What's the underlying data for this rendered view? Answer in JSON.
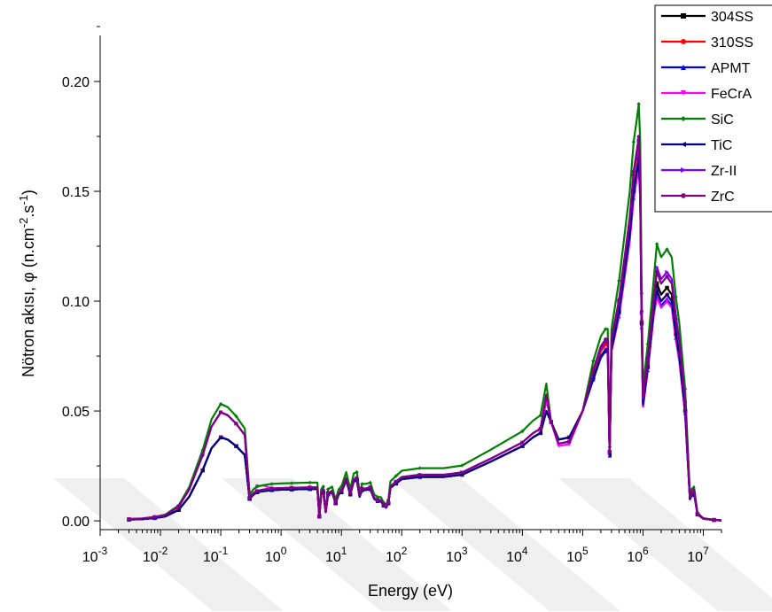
{
  "chart_data": {
    "type": "line",
    "xscale": "log",
    "xlabel": "Energy (eV)",
    "ylabel": "Nötron akısı, φ (n.cm-2.s-1)",
    "xlim": [
      0.001,
      20000000
    ],
    "ylim": [
      -0.004,
      0.225
    ],
    "xticks": [
      {
        "v": 0.001,
        "base": "10",
        "exp": "-3"
      },
      {
        "v": 0.01,
        "base": "10",
        "exp": "-2"
      },
      {
        "v": 0.1,
        "base": "10",
        "exp": "-1"
      },
      {
        "v": 1,
        "base": "10",
        "exp": "0"
      },
      {
        "v": 10,
        "base": "10",
        "exp": "1"
      },
      {
        "v": 100,
        "base": "10",
        "exp": "2"
      },
      {
        "v": 1000,
        "base": "10",
        "exp": "3"
      },
      {
        "v": 10000,
        "base": "10",
        "exp": "4"
      },
      {
        "v": 100000,
        "base": "10",
        "exp": "5"
      },
      {
        "v": 1000000,
        "base": "10",
        "exp": "6"
      },
      {
        "v": 10000000,
        "base": "10",
        "exp": "7"
      }
    ],
    "yticks": [
      {
        "v": 0.0,
        "label": "0.00"
      },
      {
        "v": 0.05,
        "label": "0.05"
      },
      {
        "v": 0.1,
        "label": "0.10"
      },
      {
        "v": 0.15,
        "label": "0.15"
      },
      {
        "v": 0.2,
        "label": "0.20"
      }
    ],
    "legend": "top-right",
    "x": [
      0.003,
      0.005,
      0.008,
      0.012,
      0.02,
      0.03,
      0.05,
      0.07,
      0.1,
      0.13,
      0.18,
      0.25,
      0.3,
      0.35,
      0.4,
      0.5,
      0.7,
      1,
      1.5,
      2,
      3,
      4,
      4.3,
      4.6,
      5,
      5.5,
      6,
      7,
      8,
      9,
      10,
      12,
      14,
      16,
      18,
      20,
      22,
      25,
      30,
      35,
      40,
      45,
      50,
      55,
      60,
      65,
      80,
      100,
      200,
      500,
      1000,
      3000,
      10000,
      15000,
      20000,
      25000,
      30000,
      40000,
      60000,
      100000,
      150000,
      200000,
      240000,
      260000,
      280000,
      300000,
      400000,
      600000,
      700000,
      800000,
      850000,
      900000,
      950000,
      1000000,
      1200000,
      1500000,
      1700000,
      2000000,
      2500000,
      3000000,
      3500000,
      4000000,
      5000000,
      6000000,
      6500000,
      7000000,
      8000000,
      10000000,
      15000000,
      20000000
    ],
    "base": [
      0.0006,
      0.0008,
      0.0013,
      0.002,
      0.005,
      0.011,
      0.023,
      0.033,
      0.038,
      0.037,
      0.034,
      0.03,
      0.01,
      0.012,
      0.013,
      0.0135,
      0.014,
      0.0142,
      0.0143,
      0.0144,
      0.0145,
      0.0145,
      0.002,
      0.012,
      0.013,
      0.004,
      0.012,
      0.013,
      0.008,
      0.012,
      0.013,
      0.0185,
      0.012,
      0.018,
      0.0185,
      0.011,
      0.014,
      0.014,
      0.0145,
      0.01,
      0.009,
      0.009,
      0.007,
      0.006,
      0.008,
      0.015,
      0.017,
      0.019,
      0.02,
      0.02,
      0.021,
      0.027,
      0.034,
      0.038,
      0.04,
      0.05,
      0.045,
      0.037,
      0.038,
      0.05,
      0.065,
      0.075,
      0.078,
      0.078,
      0.03,
      0.078,
      0.095,
      0.13,
      0.15,
      0.16,
      0.165,
      0.15,
      0.09,
      0.053,
      0.07,
      0.095,
      0.105,
      0.1,
      0.103,
      0.1,
      0.085,
      0.075,
      0.05,
      0.01,
      0.012,
      0.013,
      0.003,
      0.001,
      0.0004,
      0.0002
    ],
    "series": [
      {
        "name": "304SS",
        "color": "#000000",
        "marker": "square",
        "scales": [
          1.0,
          1.0,
          1.0,
          1.0,
          1.0,
          1.0,
          1.0,
          1.0,
          1.0,
          1.0,
          1.0,
          1.0,
          1.0,
          1.0,
          1.0,
          1.0,
          1.0,
          1.0,
          1.0,
          1.0,
          1.0,
          1.0,
          1.0,
          1.0,
          1.0,
          1.0,
          1.0,
          1.0,
          1.0,
          1.0,
          1.0,
          1.0,
          1.0,
          1.0,
          1.0,
          1.0,
          1.0,
          1.0,
          1.0,
          1.0,
          1.0,
          1.0,
          1.0,
          1.0,
          1.0,
          1.0,
          1.0,
          1.0,
          1.0,
          1.0,
          1.0,
          1.0,
          1.0,
          1.0,
          1.0,
          1.0,
          1.0,
          1.0,
          1.0,
          1.0,
          1.04,
          1.04,
          1.04,
          1.04,
          1.04,
          1.04,
          1.0,
          1.0,
          1.0,
          1.0,
          1.0,
          1.0,
          1.0,
          1.0,
          1.0,
          1.0,
          1.03,
          1.03,
          1.03,
          1.03,
          1.0,
          1.0,
          1.0,
          1.0,
          1.0,
          1.0,
          1.0,
          1.0,
          1.0,
          1.0
        ]
      },
      {
        "name": "310SS",
        "color": "#ff0000",
        "marker": "circle",
        "scales": [
          1.0,
          1.0,
          1.0,
          1.0,
          1.0,
          1.0,
          1.0,
          1.0,
          1.0,
          1.0,
          1.0,
          1.0,
          1.0,
          1.0,
          1.0,
          1.0,
          1.0,
          1.0,
          1.0,
          1.0,
          1.0,
          1.0,
          1.0,
          1.0,
          1.0,
          1.0,
          1.0,
          1.0,
          1.0,
          1.0,
          1.0,
          1.0,
          1.0,
          1.0,
          1.0,
          1.0,
          1.0,
          1.0,
          1.0,
          1.0,
          1.0,
          1.0,
          1.0,
          1.0,
          1.0,
          1.0,
          1.0,
          1.0,
          1.0,
          1.0,
          1.0,
          1.0,
          1.0,
          1.0,
          1.0,
          1.0,
          1.0,
          1.0,
          1.0,
          1.0,
          1.03,
          1.03,
          1.03,
          1.03,
          1.03,
          1.03,
          1.01,
          1.01,
          1.01,
          1.01,
          1.01,
          1.01,
          1.01,
          1.01,
          1.01,
          1.0,
          1.0,
          1.0,
          1.0,
          1.0,
          1.0,
          1.0,
          1.0,
          1.0,
          1.0,
          1.0,
          1.0,
          1.0,
          1.0,
          1.0
        ]
      },
      {
        "name": "APMT",
        "color": "#0000ff",
        "marker": "triangle-up",
        "scales": [
          1.0,
          1.0,
          1.0,
          1.0,
          1.0,
          1.0,
          1.0,
          1.0,
          1.0,
          1.0,
          1.0,
          1.0,
          1.0,
          1.0,
          1.0,
          1.0,
          1.0,
          1.0,
          1.0,
          1.0,
          1.0,
          1.0,
          1.0,
          1.0,
          1.0,
          1.0,
          1.0,
          1.0,
          1.0,
          1.0,
          1.0,
          1.0,
          1.0,
          1.0,
          1.0,
          1.0,
          1.0,
          1.0,
          1.0,
          1.0,
          1.0,
          1.0,
          1.0,
          1.0,
          1.0,
          1.0,
          1.0,
          1.0,
          1.0,
          1.0,
          1.0,
          1.0,
          1.0,
          1.0,
          1.0,
          1.0,
          1.0,
          1.0,
          1.0,
          1.0,
          0.99,
          0.99,
          0.99,
          0.99,
          0.99,
          0.99,
          0.98,
          0.98,
          0.98,
          0.98,
          0.98,
          0.98,
          0.98,
          0.98,
          0.98,
          0.98,
          0.98,
          0.98,
          0.98,
          0.98,
          0.98,
          0.98,
          0.98,
          0.98,
          0.98,
          0.98,
          0.98,
          0.98,
          0.98,
          0.98
        ]
      },
      {
        "name": "FeCrA",
        "color": "#ff00ff",
        "marker": "triangle-down",
        "scales": [
          1.3,
          1.3,
          1.3,
          1.3,
          1.3,
          1.3,
          1.3,
          1.3,
          1.3,
          1.3,
          1.3,
          1.3,
          1.2,
          1.2,
          1.2,
          1.2,
          1.05,
          1.05,
          1.05,
          1.05,
          1.05,
          1.05,
          1.05,
          1.05,
          1.05,
          1.05,
          1.05,
          1.05,
          1.05,
          1.05,
          1.05,
          1.05,
          1.05,
          1.05,
          1.05,
          1.05,
          1.05,
          1.05,
          1.05,
          1.05,
          1.05,
          1.05,
          1.05,
          1.05,
          1.05,
          1.05,
          1.0,
          1.0,
          1.0,
          1.0,
          1.0,
          1.0,
          1.0,
          1.0,
          1.0,
          1.1,
          1.0,
          0.92,
          0.92,
          1.0,
          1.0,
          1.0,
          1.0,
          1.0,
          1.0,
          1.0,
          0.98,
          0.98,
          0.98,
          0.98,
          0.98,
          0.98,
          0.98,
          0.98,
          0.98,
          0.98,
          0.97,
          0.97,
          0.97,
          0.97,
          0.97,
          0.97,
          0.97,
          0.97,
          0.97,
          0.97,
          0.97,
          0.97,
          0.97,
          0.97
        ]
      },
      {
        "name": "SiC",
        "color": "#008000",
        "marker": "diamond",
        "scales": [
          1.4,
          1.4,
          1.4,
          1.4,
          1.4,
          1.4,
          1.4,
          1.4,
          1.4,
          1.4,
          1.4,
          1.4,
          1.2,
          1.2,
          1.2,
          1.2,
          1.2,
          1.2,
          1.2,
          1.2,
          1.2,
          1.2,
          1.2,
          1.2,
          1.2,
          1.2,
          1.2,
          1.2,
          1.2,
          1.2,
          1.2,
          1.2,
          1.2,
          1.2,
          1.2,
          1.2,
          1.2,
          1.2,
          1.2,
          1.2,
          1.2,
          1.2,
          1.2,
          1.2,
          1.2,
          1.2,
          1.2,
          1.2,
          1.2,
          1.2,
          1.2,
          1.2,
          1.2,
          1.2,
          1.2,
          1.25,
          1.0,
          1.0,
          1.0,
          1.0,
          1.12,
          1.12,
          1.12,
          1.12,
          1.12,
          1.12,
          1.15,
          1.15,
          1.15,
          1.15,
          1.15,
          1.15,
          1.15,
          1.15,
          1.15,
          1.15,
          1.2,
          1.2,
          1.2,
          1.2,
          1.2,
          1.2,
          1.2,
          1.2,
          1.2,
          1.2,
          1.2,
          1.2,
          1.2,
          1.2
        ]
      },
      {
        "name": "TiC",
        "color": "#000080",
        "marker": "triangle-left",
        "scales": [
          1.0,
          1.0,
          1.0,
          1.0,
          1.0,
          1.0,
          1.0,
          1.0,
          1.0,
          1.0,
          1.0,
          1.0,
          1.0,
          1.0,
          1.0,
          1.0,
          1.0,
          1.0,
          1.0,
          1.0,
          1.0,
          1.0,
          1.0,
          1.0,
          1.0,
          1.0,
          1.0,
          1.0,
          1.0,
          1.0,
          1.0,
          1.0,
          1.0,
          1.0,
          1.0,
          1.0,
          1.0,
          1.0,
          1.0,
          1.0,
          1.0,
          1.0,
          1.0,
          1.0,
          1.0,
          1.0,
          1.0,
          1.0,
          1.0,
          1.0,
          1.0,
          1.0,
          1.0,
          1.0,
          1.0,
          1.0,
          1.0,
          1.0,
          1.0,
          1.0,
          1.0,
          1.0,
          1.0,
          1.0,
          1.0,
          1.0,
          1.0,
          1.0,
          1.0,
          1.0,
          1.0,
          1.0,
          1.0,
          1.0,
          1.0,
          1.0,
          1.0,
          1.0,
          1.0,
          1.0,
          1.0,
          1.0,
          1.0,
          1.0,
          1.0,
          1.0,
          1.0,
          1.0,
          1.0,
          1.0
        ]
      },
      {
        "name": "Zr-II",
        "color": "#8000ff",
        "marker": "triangle-right",
        "scales": [
          1.3,
          1.3,
          1.3,
          1.3,
          1.3,
          1.3,
          1.3,
          1.3,
          1.3,
          1.3,
          1.3,
          1.3,
          1.05,
          1.05,
          1.05,
          1.05,
          1.05,
          1.05,
          1.05,
          1.05,
          1.05,
          1.05,
          1.05,
          1.05,
          1.05,
          1.05,
          1.05,
          1.05,
          1.05,
          1.05,
          1.05,
          1.05,
          1.05,
          1.05,
          1.05,
          1.05,
          1.05,
          1.05,
          1.05,
          1.05,
          1.05,
          1.05,
          1.05,
          1.05,
          1.05,
          1.05,
          1.05,
          1.05,
          1.05,
          1.05,
          1.05,
          1.05,
          1.05,
          1.05,
          1.05,
          1.15,
          1.0,
          0.95,
          0.95,
          1.0,
          1.05,
          1.05,
          1.05,
          1.05,
          1.05,
          1.05,
          1.05,
          1.05,
          1.05,
          1.05,
          1.05,
          1.05,
          1.05,
          1.05,
          1.05,
          1.05,
          1.1,
          1.1,
          1.1,
          1.1,
          1.1,
          1.1,
          1.1,
          1.1,
          1.1,
          1.1,
          1.1,
          1.1,
          1.1,
          1.1
        ]
      },
      {
        "name": "ZrC",
        "color": "#800080",
        "marker": "hexagon",
        "scales": [
          1.3,
          1.3,
          1.3,
          1.3,
          1.3,
          1.3,
          1.3,
          1.3,
          1.3,
          1.3,
          1.3,
          1.3,
          1.05,
          1.05,
          1.05,
          1.05,
          1.05,
          1.05,
          1.05,
          1.05,
          1.05,
          1.05,
          1.05,
          1.05,
          1.05,
          1.05,
          1.05,
          1.05,
          1.05,
          1.05,
          1.05,
          1.05,
          1.05,
          1.05,
          1.05,
          1.05,
          1.05,
          1.05,
          1.05,
          1.05,
          1.05,
          1.05,
          1.05,
          1.05,
          1.05,
          1.05,
          1.05,
          1.05,
          1.05,
          1.05,
          1.05,
          1.05,
          1.05,
          1.05,
          1.05,
          1.15,
          1.0,
          0.95,
          0.95,
          1.0,
          1.06,
          1.06,
          1.06,
          1.06,
          1.06,
          1.06,
          1.06,
          1.06,
          1.06,
          1.06,
          1.06,
          1.06,
          1.06,
          1.06,
          1.06,
          1.06,
          1.08,
          1.08,
          1.08,
          1.08,
          1.08,
          1.08,
          1.08,
          1.08,
          1.08,
          1.08,
          1.08,
          1.08,
          1.08,
          1.08
        ]
      }
    ]
  }
}
